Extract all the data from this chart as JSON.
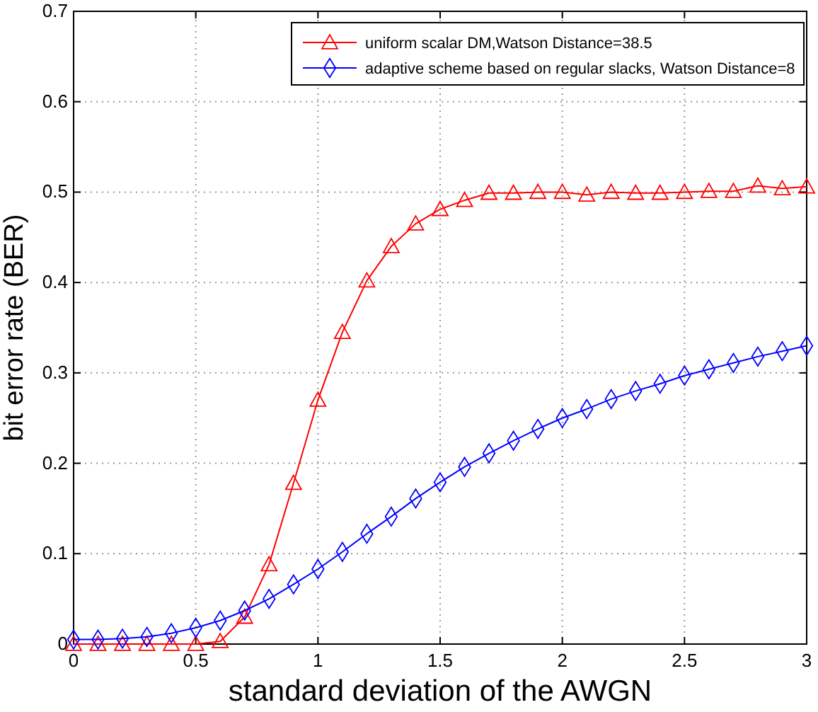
{
  "chart_data": {
    "type": "line",
    "xlabel": "standard deviation of the AWGN",
    "ylabel": "bit error rate (BER)",
    "x": [
      0,
      0.1,
      0.2,
      0.3,
      0.4,
      0.5,
      0.6,
      0.7,
      0.8,
      0.9,
      1,
      1.1,
      1.2,
      1.3,
      1.4,
      1.5,
      1.6,
      1.7,
      1.8,
      1.9,
      2,
      2.1,
      2.2,
      2.3,
      2.4,
      2.5,
      2.6,
      2.7,
      2.8,
      2.9,
      3
    ],
    "series": [
      {
        "name": "uniform scalar DM,Watson Distance=38.5",
        "color": "#ff0000",
        "marker": "triangle",
        "values": [
          0,
          0,
          0,
          0,
          0,
          0,
          0.003,
          0.03,
          0.088,
          0.178,
          0.27,
          0.345,
          0.402,
          0.44,
          0.465,
          0.481,
          0.491,
          0.499,
          0.499,
          0.5,
          0.5,
          0.497,
          0.5,
          0.499,
          0.499,
          0.5,
          0.501,
          0.501,
          0.507,
          0.504,
          0.506
        ]
      },
      {
        "name": "adaptive scheme based on regular slacks, Watson Distance=8",
        "color": "#0000ff",
        "marker": "diamond",
        "values": [
          0.005,
          0.005,
          0.006,
          0.008,
          0.012,
          0.018,
          0.026,
          0.037,
          0.05,
          0.066,
          0.083,
          0.102,
          0.122,
          0.141,
          0.161,
          0.179,
          0.196,
          0.211,
          0.225,
          0.238,
          0.25,
          0.26,
          0.271,
          0.28,
          0.288,
          0.297,
          0.304,
          0.311,
          0.318,
          0.324,
          0.33
        ]
      }
    ],
    "xlim": [
      0,
      3
    ],
    "xticks": [
      0,
      0.5,
      1,
      1.5,
      2,
      2.5,
      3
    ],
    "ylim": [
      0,
      0.7
    ],
    "yticks": [
      0,
      0.1,
      0.2,
      0.3,
      0.4,
      0.5,
      0.6,
      0.7
    ],
    "grid": true,
    "legend": "top right",
    "line_style": "solid"
  }
}
